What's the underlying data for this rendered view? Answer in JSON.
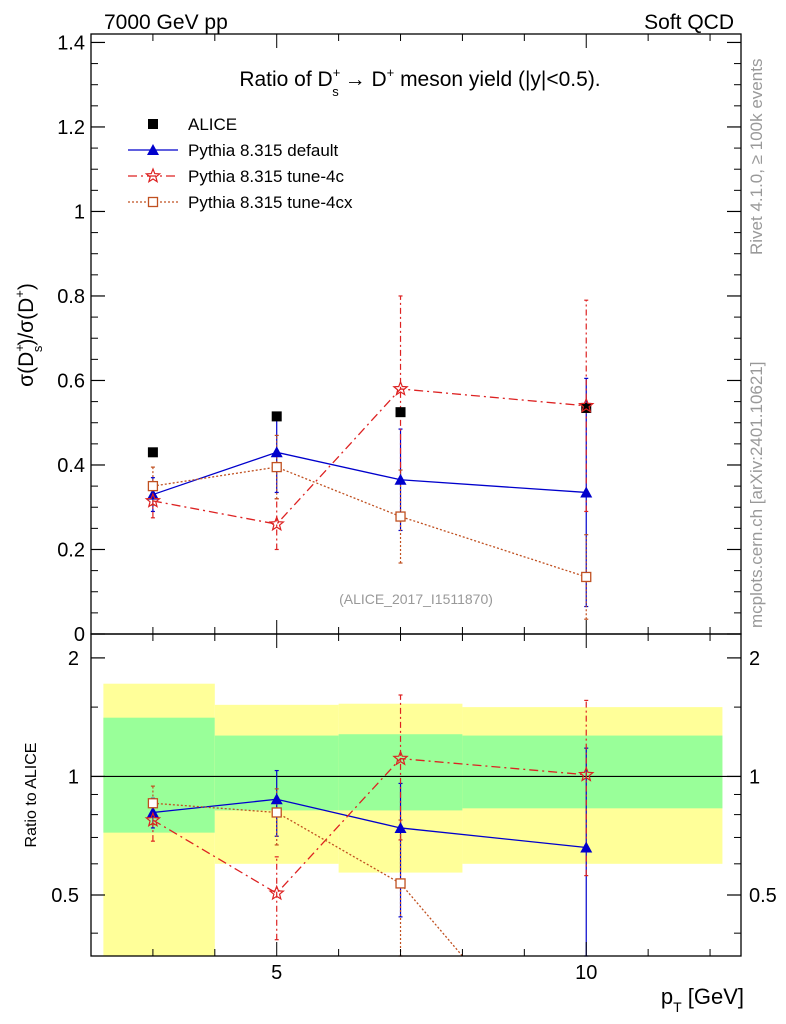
{
  "header": {
    "left": "7000 GeV pp",
    "right": "Soft QCD"
  },
  "side": {
    "rivet": "Rivet 4.1.0, ≥ 100k events",
    "mcplots": "mcplots.cern.ch [arXiv:2401.10621]"
  },
  "watermark": "(ALICE_2017_I1511870)",
  "chart_data": [
    {
      "type": "scatter",
      "title": "Ratio of D_s^+ → D^+ meson yield (|y|<0.5).",
      "title_parts": {
        "pre": "Ratio of D",
        "sup": "+",
        "sub": "s",
        "mid": " → D",
        "sup2": "+",
        "post": " meson yield (|y|<0.5)."
      },
      "ylabel": "σ(D_s^+)/σ(D^+)",
      "ylabel_parts": {
        "a": "σ(D",
        "sub": "s",
        "sup": "+",
        "b": ")/σ(D",
        "sup2": "+",
        "c": ")"
      },
      "xlim": [
        2,
        12.5
      ],
      "ylim": [
        0,
        1.42
      ],
      "yticks": [
        0,
        0.2,
        0.4,
        0.6,
        0.8,
        1,
        1.2,
        1.4
      ],
      "ytick_labels": [
        "0",
        "0.2",
        "0.4",
        "0.6",
        "0.8",
        "1",
        "1.2",
        "1.4"
      ],
      "series": [
        {
          "name": "ALICE",
          "color": "#000000",
          "marker": "square",
          "line": "none",
          "x": [
            3,
            5,
            7,
            10
          ],
          "y": [
            0.43,
            0.515,
            0.525,
            0.535
          ]
        },
        {
          "name": "Pythia 8.315 default",
          "color": "#0000cc",
          "marker": "triangle",
          "line": "solid",
          "x": [
            3,
            5,
            7,
            10
          ],
          "y": [
            0.33,
            0.43,
            0.365,
            0.335
          ],
          "err_lo": [
            0.04,
            0.095,
            0.12,
            0.27
          ],
          "err_hi": [
            0.04,
            0.095,
            0.12,
            0.27
          ]
        },
        {
          "name": "Pythia 8.315 tune-4c",
          "color": "#dd2222",
          "marker": "star",
          "line": "dashdot",
          "x": [
            3,
            5,
            7,
            10
          ],
          "y": [
            0.315,
            0.26,
            0.58,
            0.54
          ],
          "err_lo": [
            0.04,
            0.06,
            0.22,
            0.25
          ],
          "err_hi": [
            0.04,
            0.06,
            0.22,
            0.25
          ]
        },
        {
          "name": "Pythia 8.315 tune-4cx",
          "color": "#c05020",
          "marker": "open-square",
          "line": "dotted",
          "x": [
            3,
            5,
            7,
            10
          ],
          "y": [
            0.35,
            0.395,
            0.278,
            0.135
          ],
          "err_lo": [
            0.045,
            0.075,
            0.11,
            0.1
          ],
          "err_hi": [
            0.045,
            0.075,
            0.11,
            0.1
          ]
        }
      ]
    },
    {
      "type": "scatter",
      "ylabel": "Ratio to ALICE",
      "xlabel": "p_T [GeV]",
      "xlabel_parts": {
        "a": "p",
        "sub": "T",
        "b": " [GeV]"
      },
      "xlim": [
        2,
        12.5
      ],
      "ylim": [
        0.35,
        2.3
      ],
      "xticks": [
        5,
        10
      ],
      "xtick_labels": [
        "5",
        "10"
      ],
      "yticks": [
        0.5,
        1,
        2
      ],
      "ytick_labels": [
        "0.5",
        "1",
        "2"
      ],
      "bands": [
        {
          "x0": 2.2,
          "x1": 4,
          "inner": [
            0.72,
            1.41
          ],
          "outer": [
            0.35,
            1.72
          ]
        },
        {
          "x0": 4,
          "x1": 6,
          "inner": [
            0.82,
            1.27
          ],
          "outer": [
            0.6,
            1.52
          ]
        },
        {
          "x0": 6,
          "x1": 8,
          "inner": [
            0.82,
            1.28
          ],
          "outer": [
            0.57,
            1.53
          ]
        },
        {
          "x0": 8,
          "x1": 12.2,
          "inner": [
            0.83,
            1.27
          ],
          "outer": [
            0.6,
            1.5
          ]
        }
      ],
      "series": [
        {
          "name": "Pythia 8.315 default",
          "x": [
            3,
            5,
            7,
            10
          ],
          "y": [
            0.81,
            0.875,
            0.74,
            0.66
          ],
          "err_lo": [
            0.07,
            0.17,
            0.3,
            0.58
          ],
          "err_hi": [
            0.07,
            0.16,
            0.22,
            0.52
          ]
        },
        {
          "name": "Pythia 8.315 tune-4c",
          "x": [
            3,
            5,
            7,
            10
          ],
          "y": [
            0.775,
            0.505,
            1.11,
            1.01
          ],
          "err_lo": [
            0.09,
            0.12,
            0.42,
            0.45
          ],
          "err_hi": [
            0.09,
            0.12,
            0.5,
            0.55
          ]
        },
        {
          "name": "Pythia 8.315 tune-4cx",
          "x": [
            3,
            5,
            7,
            8
          ],
          "y": [
            0.855,
            0.81,
            0.535,
            0.35
          ],
          "err_lo": [
            0.1,
            0.14,
            0.25,
            0
          ],
          "err_hi": [
            0.09,
            0.12,
            0.24,
            0
          ]
        }
      ]
    }
  ]
}
